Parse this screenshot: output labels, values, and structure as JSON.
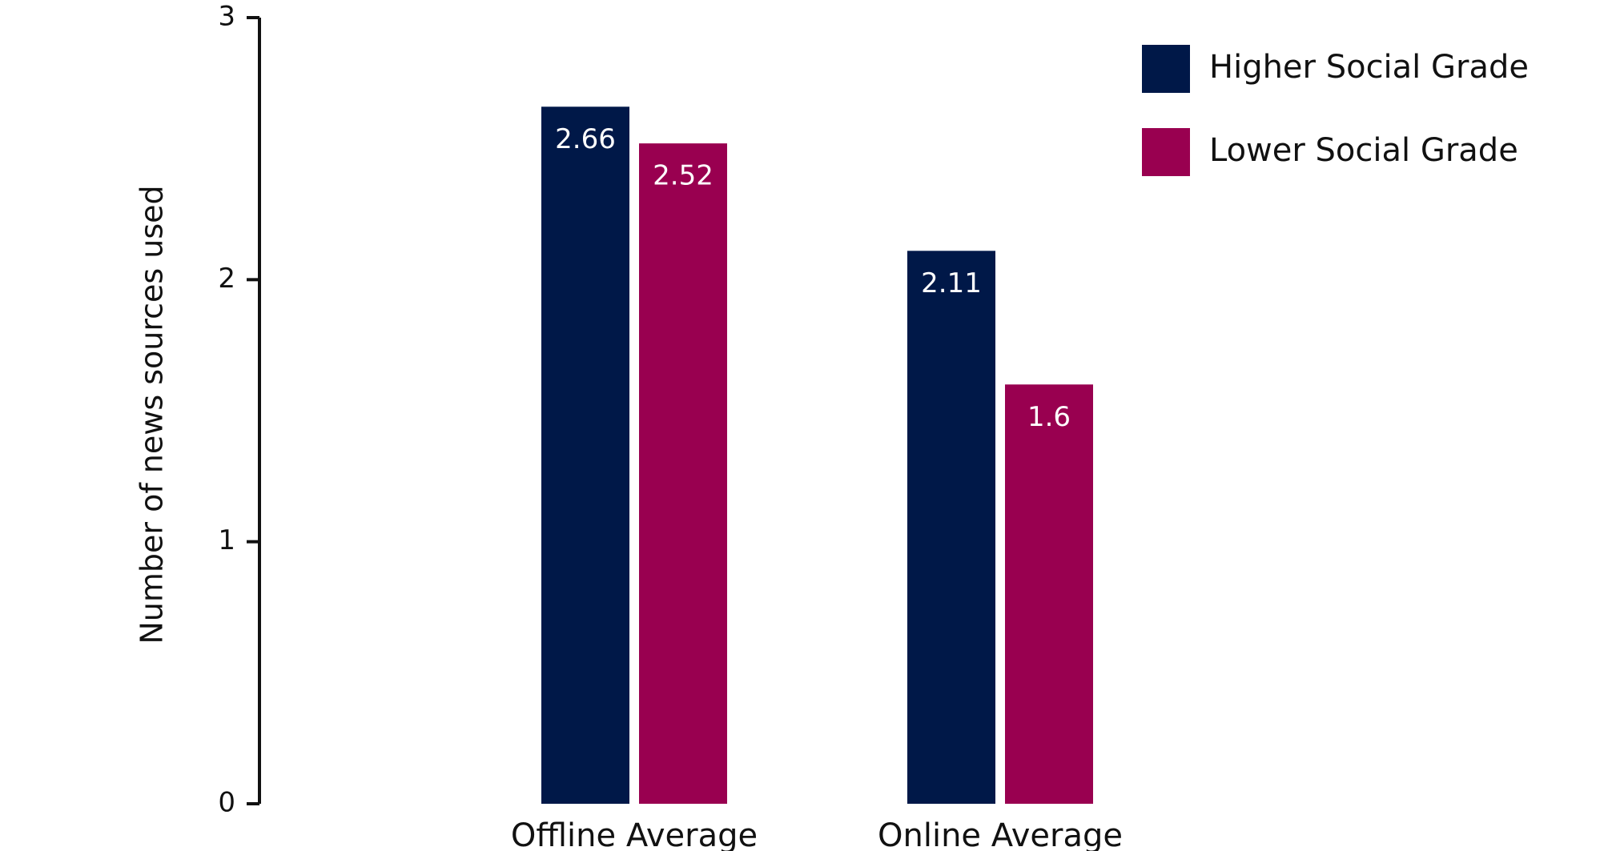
{
  "chart_data": {
    "type": "bar",
    "title": "",
    "xlabel": "",
    "ylabel": "Number of news sources used",
    "categories": [
      "Offline Average",
      "Online Average"
    ],
    "series": [
      {
        "name": "Higher Social Grade",
        "values": [
          2.66,
          2.11
        ],
        "labels": [
          "2.66",
          "2.11"
        ],
        "color": "#001848"
      },
      {
        "name": "Lower Social Grade",
        "values": [
          2.52,
          1.6
        ],
        "labels": [
          "2.52",
          "1.6"
        ],
        "color": "#990050"
      }
    ],
    "ylim": [
      0,
      3
    ],
    "yticks": [
      0,
      1,
      2,
      3
    ],
    "ytick_labels": [
      "0",
      "1",
      "2",
      "3"
    ],
    "grid": false,
    "legend_position": "top-right",
    "axis_color": "#111111",
    "data_label_color": "#ffffff"
  }
}
